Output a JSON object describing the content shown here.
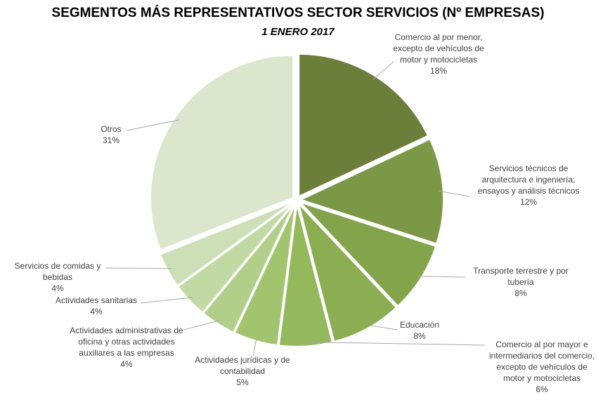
{
  "chart_data": {
    "type": "pie",
    "title": "SEGMENTOS MÁS REPRESENTATIVOS SECTOR SERVICIOS (Nº EMPRESAS)",
    "subtitle": "1 ENERO 2017",
    "categories": [
      "Comercio al por menor, excepto de vehículos de motor y motocicletas",
      "Servicios técnicos de arquitectura e ingeniería; ensayos y análisis técnicos",
      "Transporte terrestre y por tubería",
      "Educación",
      "Comercio al por mayor e intermediarios del comercio, excepto de vehículos de motor y motocicletas",
      "Actividades jurídicas y de contabilidad",
      "Actividades administrativas de oficina y otras actividades auxiliares a las empresas",
      "Actividades sanitarias",
      "Servicios de comidas y bebidas",
      "Otros"
    ],
    "values": [
      18,
      12,
      8,
      8,
      6,
      5,
      4,
      4,
      4,
      31
    ],
    "value_labels": [
      "18%",
      "12%",
      "8%",
      "8%",
      "6%",
      "5%",
      "4%",
      "4%",
      "4%",
      "31%"
    ],
    "colors": [
      "#6b7e3a",
      "#7a9845",
      "#84a44c",
      "#8cae52",
      "#94b95c",
      "#a3c46f",
      "#b2cf8a",
      "#c1d9a2",
      "#cddfb6",
      "#dce6cc"
    ]
  }
}
